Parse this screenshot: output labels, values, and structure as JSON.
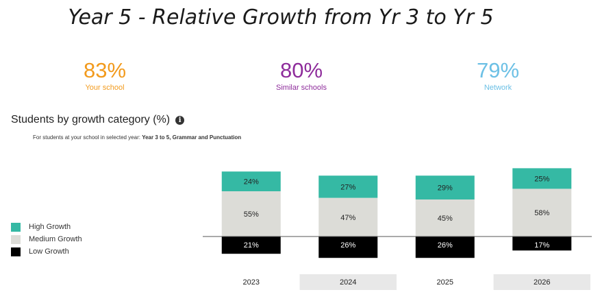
{
  "title": "Year 5 - Relative Growth from Yr 3 to Yr 5",
  "stats": [
    {
      "value": "83%",
      "label": "Your school",
      "color": "#f29a1c"
    },
    {
      "value": "80%",
      "label": "Similar schools",
      "color": "#8e2c9b"
    },
    {
      "value": "79%",
      "label": "Network",
      "color": "#6cc0e5"
    }
  ],
  "section_title": "Students by growth category (%)",
  "info_icon": "i",
  "subtitle_prefix": "For students at your school in selected year:",
  "subtitle_bold": "Year 3 to 5, Grammar and Punctuation",
  "legend": [
    {
      "label": "High Growth",
      "color": "#35b9a4"
    },
    {
      "label": "Medium Growth",
      "color": "#dcdcd7"
    },
    {
      "label": "Low Growth",
      "color": "#000000"
    }
  ],
  "chart_data": {
    "type": "bar",
    "stacking": "diverging",
    "categories": [
      "2023",
      "2024",
      "2025",
      "2026"
    ],
    "highlighted_categories": [
      "2024",
      "2026"
    ],
    "series": [
      {
        "name": "High Growth",
        "values": [
          24,
          27,
          29,
          25
        ],
        "color": "#35b9a4",
        "direction": "up"
      },
      {
        "name": "Medium Growth",
        "values": [
          55,
          47,
          45,
          58
        ],
        "color": "#dcdcd7",
        "direction": "up"
      },
      {
        "name": "Low Growth",
        "values": [
          21,
          26,
          26,
          17
        ],
        "color": "#000000",
        "direction": "down"
      }
    ],
    "value_suffix": "%",
    "legend_position": "left"
  }
}
